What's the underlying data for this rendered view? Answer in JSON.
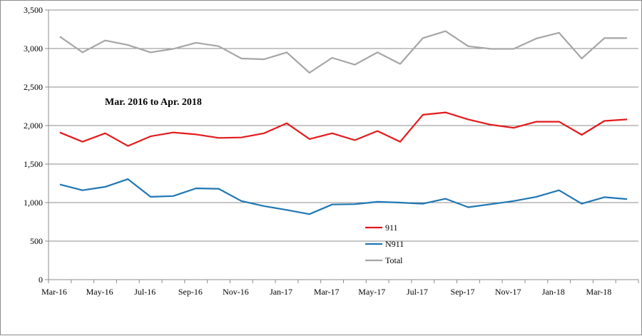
{
  "chart_data": {
    "type": "line",
    "title": "",
    "annotation": "Mar. 2016 to Apr. 2018",
    "xlabel": "",
    "ylabel": "",
    "ylim": [
      0,
      3500
    ],
    "y_ticks": [
      0,
      500,
      1000,
      1500,
      2000,
      2500,
      3000,
      3500
    ],
    "y_tick_labels": [
      "0",
      "500",
      "1,000",
      "1,500",
      "2,000",
      "2,500",
      "3,000",
      "3,500"
    ],
    "grid": true,
    "legend_position": "lower-center",
    "x": [
      "Mar-16",
      "Apr-16",
      "May-16",
      "Jun-16",
      "Jul-16",
      "Aug-16",
      "Sep-16",
      "Oct-16",
      "Nov-16",
      "Dec-16",
      "Jan-17",
      "Feb-17",
      "Mar-17",
      "Apr-17",
      "May-17",
      "Jun-17",
      "Jul-17",
      "Aug-17",
      "Sep-17",
      "Oct-17",
      "Nov-17",
      "Dec-17",
      "Jan-18",
      "Feb-18",
      "Mar-18",
      "Apr-18"
    ],
    "x_tick_labels": [
      "Mar-16",
      "May-16",
      "Jul-16",
      "Sep-16",
      "Nov-16",
      "Jan-17",
      "Mar-17",
      "May-17",
      "Jul-17",
      "Sep-17",
      "Nov-17",
      "Jan-18",
      "Mar-18"
    ],
    "series": [
      {
        "name": "911",
        "color": "#e31a1c",
        "values": [
          1910,
          1790,
          1900,
          1735,
          1860,
          1910,
          1885,
          1840,
          1845,
          1900,
          2030,
          1825,
          1900,
          1810,
          1930,
          1790,
          2140,
          2170,
          2080,
          2010,
          1970,
          2050,
          2050,
          1880,
          2060,
          2080
        ]
      },
      {
        "name": "N911",
        "color": "#1f77b4",
        "values": [
          1235,
          1160,
          1205,
          1305,
          1075,
          1085,
          1185,
          1180,
          1020,
          955,
          905,
          850,
          975,
          980,
          1010,
          1000,
          985,
          1050,
          940,
          980,
          1020,
          1075,
          1160,
          985,
          1070,
          1045
        ]
      },
      {
        "name": "Total",
        "color": "#a6a6a6",
        "values": [
          3155,
          2950,
          3105,
          3045,
          2950,
          2995,
          3075,
          3030,
          2870,
          2860,
          2950,
          2685,
          2880,
          2790,
          2950,
          2800,
          3135,
          3225,
          3030,
          2995,
          2995,
          3130,
          3205,
          2870,
          3135,
          3135
        ]
      }
    ]
  }
}
